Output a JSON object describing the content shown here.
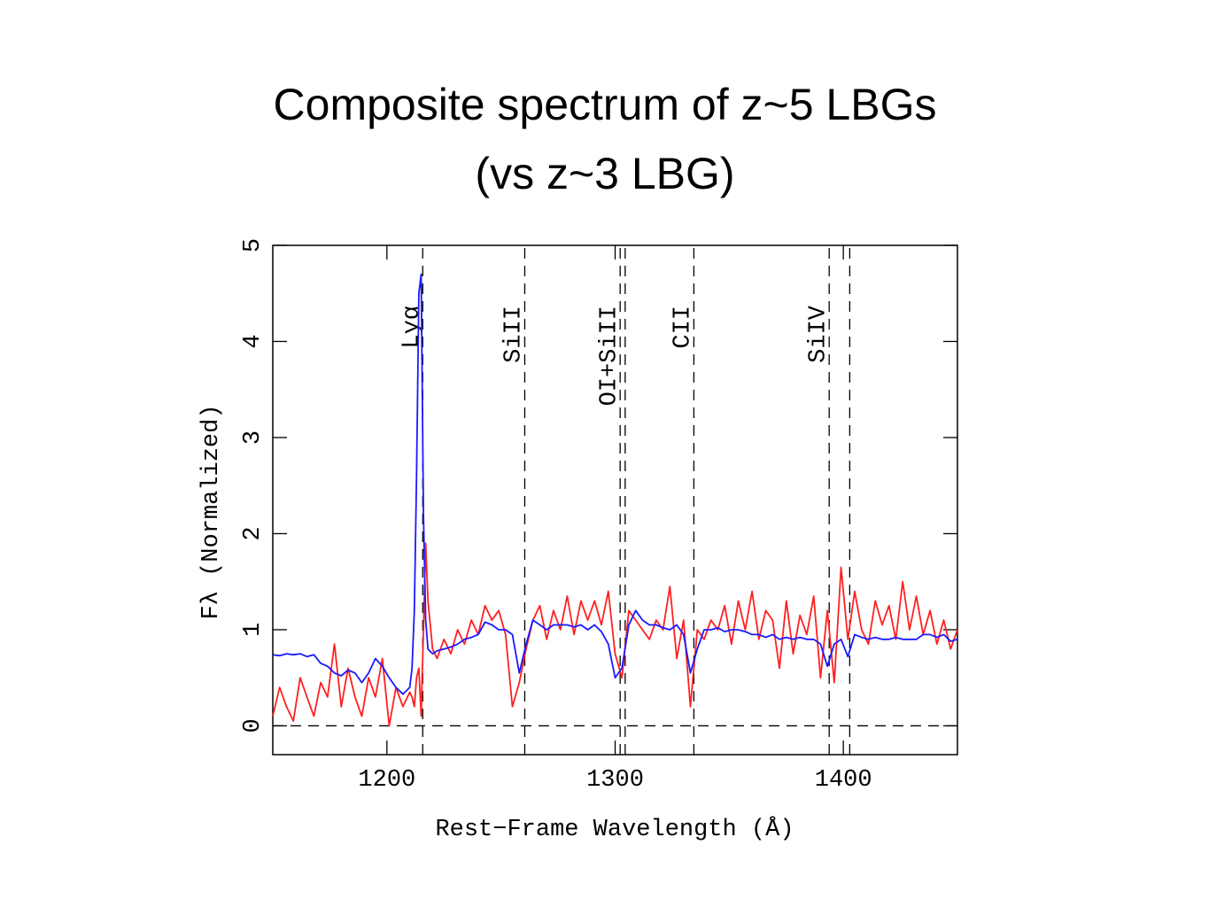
{
  "chart_data": {
    "type": "line",
    "title": "Composite spectrum of z~5 LBGs",
    "subtitle": "(vs z~3 LBG)",
    "x_label": "Rest−Frame Wavelength (Å)",
    "y_label": "Fλ (Normalized)",
    "xlim": [
      1150,
      1450
    ],
    "ylim": [
      -0.3,
      5
    ],
    "xticks": [
      1200,
      1300,
      1400
    ],
    "yticks": [
      0,
      1,
      2,
      3,
      4,
      5
    ],
    "hline": 0,
    "vlines": [
      {
        "x": 1215.7,
        "label": "Lyα"
      },
      {
        "x": 1260.4,
        "label": "SiII"
      },
      {
        "x": 1302.2,
        "label": "OI+SiII"
      },
      {
        "x": 1304.4
      },
      {
        "x": 1334.5,
        "label": "CII"
      },
      {
        "x": 1393.8,
        "label": "SiIV"
      },
      {
        "x": 1402.8
      }
    ],
    "x": [
      1150,
      1153,
      1156,
      1159,
      1162,
      1165,
      1168,
      1171,
      1174,
      1177,
      1180,
      1183,
      1186,
      1189,
      1192,
      1195,
      1198,
      1201,
      1204,
      1207,
      1210,
      1211,
      1212,
      1213,
      1214,
      1215,
      1216,
      1217,
      1218,
      1220,
      1222,
      1225,
      1228,
      1231,
      1234,
      1237,
      1240,
      1243,
      1246,
      1249,
      1252,
      1255,
      1258,
      1261,
      1264,
      1267,
      1270,
      1273,
      1276,
      1279,
      1282,
      1285,
      1288,
      1291,
      1294,
      1297,
      1300,
      1303,
      1306,
      1309,
      1312,
      1315,
      1318,
      1321,
      1324,
      1327,
      1330,
      1333,
      1336,
      1339,
      1342,
      1345,
      1348,
      1351,
      1354,
      1357,
      1360,
      1363,
      1366,
      1369,
      1372,
      1375,
      1378,
      1381,
      1384,
      1387,
      1390,
      1393,
      1396,
      1399,
      1402,
      1405,
      1408,
      1411,
      1414,
      1417,
      1420,
      1423,
      1426,
      1429,
      1432,
      1435,
      1438,
      1441,
      1444,
      1447,
      1450
    ],
    "series": [
      {
        "color": "#ff2020",
        "values": [
          0.1,
          0.4,
          0.2,
          0.05,
          0.5,
          0.3,
          0.1,
          0.45,
          0.3,
          0.85,
          0.2,
          0.6,
          0.3,
          0.1,
          0.5,
          0.3,
          0.7,
          0.0,
          0.4,
          0.2,
          0.35,
          0.3,
          0.2,
          0.5,
          0.6,
          0.1,
          1.0,
          1.9,
          1.3,
          0.8,
          0.7,
          0.9,
          0.75,
          1.0,
          0.85,
          1.1,
          0.95,
          1.25,
          1.1,
          1.2,
          0.95,
          0.2,
          0.45,
          0.8,
          1.1,
          1.25,
          0.9,
          1.2,
          1.0,
          1.35,
          0.95,
          1.3,
          1.1,
          1.3,
          1.05,
          1.4,
          0.75,
          0.5,
          1.2,
          1.1,
          1.0,
          0.9,
          1.1,
          1.0,
          1.45,
          0.7,
          1.1,
          0.2,
          1.0,
          0.9,
          1.1,
          1.0,
          1.25,
          0.85,
          1.3,
          1.0,
          1.4,
          0.9,
          1.2,
          1.1,
          0.6,
          1.3,
          0.75,
          1.15,
          0.95,
          1.35,
          0.5,
          1.2,
          0.45,
          1.65,
          0.9,
          1.4,
          1.0,
          0.85,
          1.3,
          1.05,
          1.25,
          0.9,
          1.5,
          1.0,
          1.35,
          0.95,
          1.2,
          0.85,
          1.1,
          0.8,
          1.0
        ]
      },
      {
        "color": "#1a1aff",
        "values": [
          0.74,
          0.73,
          0.75,
          0.74,
          0.75,
          0.72,
          0.74,
          0.65,
          0.62,
          0.55,
          0.52,
          0.58,
          0.55,
          0.45,
          0.55,
          0.7,
          0.62,
          0.5,
          0.4,
          0.33,
          0.4,
          0.6,
          1.2,
          2.6,
          4.5,
          4.7,
          2.2,
          1.1,
          0.8,
          0.75,
          0.78,
          0.8,
          0.82,
          0.85,
          0.9,
          0.92,
          0.95,
          1.08,
          1.05,
          1.0,
          1.0,
          0.95,
          0.55,
          0.85,
          1.1,
          1.05,
          1.0,
          1.05,
          1.05,
          1.05,
          1.03,
          1.05,
          1.0,
          1.05,
          0.98,
          0.85,
          0.5,
          0.6,
          1.05,
          1.2,
          1.1,
          1.05,
          1.05,
          1.02,
          1.0,
          1.05,
          0.95,
          0.55,
          0.8,
          1.0,
          1.0,
          1.02,
          0.98,
          1.0,
          1.0,
          0.98,
          0.95,
          0.95,
          0.92,
          0.95,
          0.9,
          0.92,
          0.9,
          0.92,
          0.9,
          0.9,
          0.85,
          0.62,
          0.85,
          0.9,
          0.72,
          0.95,
          0.92,
          0.9,
          0.92,
          0.9,
          0.9,
          0.92,
          0.9,
          0.9,
          0.9,
          0.95,
          0.95,
          0.92,
          0.95,
          0.88,
          0.9
        ]
      }
    ]
  }
}
